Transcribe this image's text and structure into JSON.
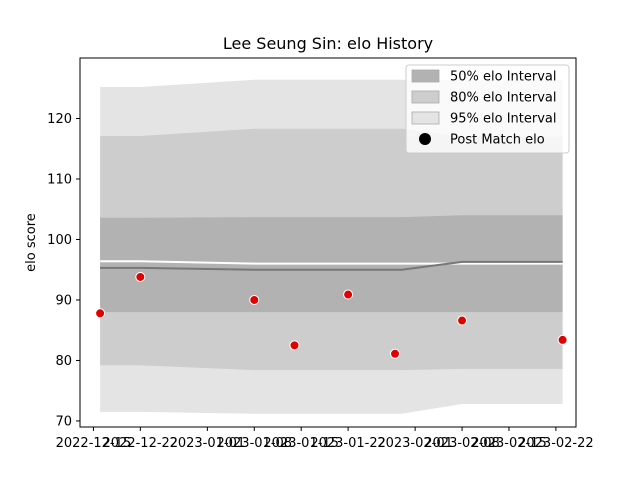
{
  "chart_data": {
    "type": "line",
    "title": "Lee Seung Sin: elo History",
    "xlabel": "",
    "ylabel": "elo score",
    "ylim": [
      69,
      130
    ],
    "yticks": [
      70,
      80,
      90,
      100,
      110,
      120
    ],
    "xlim": [
      "2022-12-13",
      "2023-02-25"
    ],
    "xticks": [
      "2022-12-15",
      "2022-12-22",
      "2023-01-01",
      "2023-01-08",
      "2023-01-15",
      "2023-01-22",
      "2023-02-01",
      "2023-02-08",
      "2023-02-15",
      "2023-02-22"
    ],
    "xtick_labels": [
      "2022-12-15",
      "2022-12-22",
      "2023-01-01",
      "2023-01-08",
      "2023-01-15",
      "2023-01-22",
      "2023-02-01",
      "2023-02-08",
      "2023-02-15",
      "2023-02-22"
    ],
    "band_dates": [
      "2022-12-16",
      "2022-12-22",
      "2023-01-08",
      "2023-01-15",
      "2023-01-22",
      "2023-01-30",
      "2023-02-08",
      "2023-02-23"
    ],
    "bands": [
      {
        "name": "95% elo Interval",
        "color": "#e4e4e4",
        "lower": [
          71.5,
          71.5,
          71.2,
          71.2,
          71.2,
          71.2,
          72.8,
          72.8
        ],
        "upper": [
          125.2,
          125.2,
          126.4,
          126.4,
          126.4,
          126.4,
          126.4,
          126.4
        ]
      },
      {
        "name": "80% elo Interval",
        "color": "#cdcdcd",
        "lower": [
          79.2,
          79.2,
          78.4,
          78.4,
          78.4,
          78.4,
          78.6,
          78.6
        ],
        "upper": [
          117.1,
          117.1,
          118.3,
          118.3,
          118.3,
          118.3,
          117.0,
          117.0
        ]
      },
      {
        "name": "50% elo Interval",
        "color": "#b2b2b2",
        "lower": [
          88.0,
          88.0,
          88.0,
          88.0,
          88.0,
          88.0,
          88.0,
          88.0
        ],
        "upper": [
          103.6,
          103.6,
          103.7,
          103.7,
          103.7,
          103.7,
          104.0,
          104.0
        ]
      }
    ],
    "mean_line": {
      "name": "elo",
      "values": [
        95.3,
        95.3,
        95.0,
        95.0,
        95.0,
        95.0,
        96.3,
        96.3
      ]
    },
    "median_line": {
      "values": [
        96.4,
        96.4,
        96.0,
        96.0,
        96.0,
        96.0,
        96.0,
        96.0
      ]
    },
    "points": {
      "name": "Post Match elo",
      "color": "#e00000",
      "dates": [
        "2022-12-16",
        "2022-12-22",
        "2023-01-08",
        "2023-01-14",
        "2023-01-22",
        "2023-01-29",
        "2023-02-08",
        "2023-02-23"
      ],
      "values": [
        87.8,
        93.8,
        90.0,
        82.5,
        90.9,
        81.1,
        86.6,
        83.4
      ]
    },
    "legend": {
      "position": "top-right",
      "entries": [
        "50% elo Interval",
        "80% elo Interval",
        "95% elo Interval",
        "Post Match elo"
      ],
      "swatch_colors": [
        "#b2b2b2",
        "#cdcdcd",
        "#e4e4e4",
        "#000000"
      ]
    }
  }
}
